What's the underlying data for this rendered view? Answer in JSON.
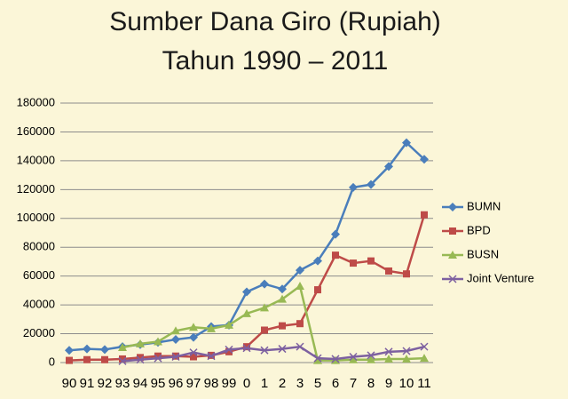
{
  "chart_data": {
    "type": "line",
    "title": [
      "Sumber Dana Giro (Rupiah)",
      "Tahun 1990 – 2011"
    ],
    "categories": [
      "90",
      "91",
      "92",
      "93",
      "94",
      "95",
      "96",
      "97",
      "98",
      "99",
      "0",
      "1",
      "2",
      "3",
      "5",
      "6",
      "7",
      "8",
      "9",
      "10",
      "11"
    ],
    "series": [
      {
        "name": "BUMN",
        "color": "#4a7ebb",
        "marker": "diamond",
        "values": [
          8500,
          9500,
          9000,
          11000,
          12500,
          14000,
          16000,
          17500,
          25000,
          26000,
          49000,
          54500,
          51000,
          64000,
          70500,
          89000,
          121500,
          123500,
          136000,
          152500,
          141000
        ]
      },
      {
        "name": "BPD",
        "color": "#be4b48",
        "marker": "square",
        "values": [
          1500,
          2000,
          2000,
          2500,
          3500,
          4500,
          4500,
          4000,
          5000,
          7500,
          11000,
          22500,
          25500,
          27000,
          50500,
          74500,
          69000,
          70500,
          63500,
          61500,
          102500
        ]
      },
      {
        "name": "BUSN",
        "color": "#98b954",
        "marker": "triangle",
        "values": [
          null,
          null,
          null,
          10500,
          13000,
          14500,
          22000,
          24500,
          23500,
          26000,
          34000,
          38000,
          44000,
          53000,
          1500,
          1500,
          2000,
          2000,
          2500,
          2500,
          3000
        ]
      },
      {
        "name": "Joint Venture",
        "color": "#7d60a0",
        "marker": "x",
        "values": [
          null,
          null,
          null,
          1000,
          2000,
          3000,
          4000,
          7000,
          4500,
          9000,
          10000,
          8500,
          9500,
          11000,
          3000,
          2500,
          4000,
          5000,
          7500,
          8000,
          11000
        ]
      }
    ],
    "ylim": [
      0,
      180000
    ],
    "yticks": [
      0,
      20000,
      40000,
      60000,
      80000,
      100000,
      120000,
      140000,
      160000,
      180000
    ],
    "grid": true,
    "legend": "right"
  }
}
